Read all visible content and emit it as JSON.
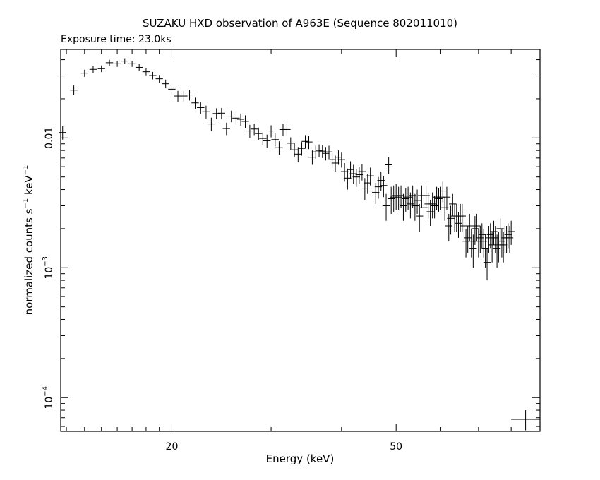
{
  "chart_data": {
    "type": "scatter",
    "title": "SUZAKU HXD observation of A963E (Sequence 802011010)",
    "subtitle": "Exposure time: 23.0ks",
    "xlabel": "Energy (keV)",
    "ylabel_main": "normalized counts s",
    "ylabel_sup1": "−1",
    "ylabel_mid": " keV",
    "ylabel_sup2": "−1",
    "xscale": "log",
    "yscale": "log",
    "xlim": [
      12.7,
      90
    ],
    "ylim": [
      5.5e-05,
      0.048
    ],
    "x_ticks": [
      {
        "value": 20,
        "label": "20"
      },
      {
        "value": 50,
        "label": "50"
      }
    ],
    "y_ticks": [
      {
        "value": 0.01,
        "base": "0.01",
        "exp": ""
      },
      {
        "value": 0.001,
        "base": "10",
        "exp": "−3"
      },
      {
        "value": 0.0001,
        "base": "10",
        "exp": "−4"
      }
    ],
    "points": [
      [
        12.8,
        0.011,
        0.0013
      ],
      [
        13.4,
        0.0233,
        0.002
      ],
      [
        14.0,
        0.0315,
        0.002
      ],
      [
        14.5,
        0.0337,
        0.002
      ],
      [
        15.0,
        0.0341,
        0.002
      ],
      [
        15.5,
        0.0379,
        0.002
      ],
      [
        16.0,
        0.0372,
        0.002
      ],
      [
        16.5,
        0.039,
        0.002
      ],
      [
        17.0,
        0.0372,
        0.002
      ],
      [
        17.5,
        0.0349,
        0.002
      ],
      [
        18.0,
        0.0323,
        0.002
      ],
      [
        18.5,
        0.0302,
        0.002
      ],
      [
        19.0,
        0.0285,
        0.002
      ],
      [
        19.5,
        0.0261,
        0.002
      ],
      [
        20.0,
        0.0237,
        0.002
      ],
      [
        20.5,
        0.021,
        0.002
      ],
      [
        21.0,
        0.021,
        0.002
      ],
      [
        21.5,
        0.0214,
        0.002
      ],
      [
        22.0,
        0.0186,
        0.0018
      ],
      [
        22.5,
        0.0171,
        0.0018
      ],
      [
        23.0,
        0.0159,
        0.0018
      ],
      [
        23.5,
        0.0128,
        0.0015
      ],
      [
        24.0,
        0.0154,
        0.0015
      ],
      [
        24.5,
        0.0155,
        0.0015
      ],
      [
        25.0,
        0.0118,
        0.0013
      ],
      [
        25.5,
        0.0147,
        0.0015
      ],
      [
        26.0,
        0.0142,
        0.0015
      ],
      [
        26.5,
        0.0139,
        0.0015
      ],
      [
        27.0,
        0.0134,
        0.0015
      ],
      [
        27.5,
        0.0113,
        0.0013
      ],
      [
        28.0,
        0.0117,
        0.0012
      ],
      [
        28.5,
        0.0108,
        0.0012
      ],
      [
        29.0,
        0.0099,
        0.0011
      ],
      [
        29.5,
        0.0095,
        0.0011
      ],
      [
        30.0,
        0.0113,
        0.0012
      ],
      [
        30.5,
        0.0097,
        0.0011
      ],
      [
        31.0,
        0.0084,
        0.001
      ],
      [
        31.5,
        0.0116,
        0.0012
      ],
      [
        32.0,
        0.0116,
        0.0012
      ],
      [
        32.5,
        0.0091,
        0.001
      ],
      [
        33.0,
        0.0081,
        0.001
      ],
      [
        33.5,
        0.0075,
        0.001
      ],
      [
        34.0,
        0.0083,
        0.001
      ],
      [
        34.5,
        0.0094,
        0.0011
      ],
      [
        35.0,
        0.0093,
        0.0011
      ],
      [
        35.5,
        0.0071,
        0.0009
      ],
      [
        36.0,
        0.0078,
        0.0009
      ],
      [
        36.5,
        0.008,
        0.0009
      ],
      [
        37.0,
        0.0079,
        0.0009
      ],
      [
        37.5,
        0.0076,
        0.0009
      ],
      [
        38.0,
        0.0078,
        0.0009
      ],
      [
        38.5,
        0.0068,
        0.0009
      ],
      [
        39.0,
        0.0064,
        0.0009
      ],
      [
        39.5,
        0.0071,
        0.0009
      ],
      [
        40.0,
        0.0068,
        0.0009
      ],
      [
        40.5,
        0.0055,
        0.0009
      ],
      [
        41.0,
        0.0049,
        0.0009
      ],
      [
        41.5,
        0.0057,
        0.0009
      ],
      [
        42.0,
        0.0053,
        0.0009
      ],
      [
        42.5,
        0.005,
        0.0008
      ],
      [
        43.0,
        0.0052,
        0.0008
      ],
      [
        43.5,
        0.0055,
        0.0008
      ],
      [
        44.0,
        0.0041,
        0.0008
      ],
      [
        44.5,
        0.0045,
        0.0008
      ],
      [
        45.0,
        0.0051,
        0.0008
      ],
      [
        45.5,
        0.0039,
        0.0007
      ],
      [
        46.0,
        0.0038,
        0.0007
      ],
      [
        46.5,
        0.0042,
        0.0008
      ],
      [
        47.0,
        0.0047,
        0.0008
      ],
      [
        47.5,
        0.0043,
        0.0008
      ],
      [
        48.0,
        0.003,
        0.0007
      ],
      [
        48.5,
        0.0062,
        0.0009
      ],
      [
        49.0,
        0.0034,
        0.0008
      ],
      [
        49.5,
        0.0035,
        0.0008
      ],
      [
        50.0,
        0.0036,
        0.0008
      ],
      [
        50.5,
        0.0035,
        0.0007
      ],
      [
        51.0,
        0.0036,
        0.0007
      ],
      [
        51.5,
        0.003,
        0.0007
      ],
      [
        52.0,
        0.0034,
        0.0007
      ],
      [
        52.5,
        0.0035,
        0.0007
      ],
      [
        53.0,
        0.0031,
        0.0007
      ],
      [
        53.5,
        0.0036,
        0.0007
      ],
      [
        54.0,
        0.003,
        0.0007
      ],
      [
        54.5,
        0.0033,
        0.0007
      ],
      [
        55.0,
        0.0025,
        0.0006
      ],
      [
        55.5,
        0.0036,
        0.0007
      ],
      [
        56.0,
        0.0029,
        0.0006
      ],
      [
        56.5,
        0.0036,
        0.0007
      ],
      [
        57.0,
        0.0031,
        0.0007
      ],
      [
        57.5,
        0.0027,
        0.0006
      ],
      [
        58.0,
        0.0031,
        0.0007
      ],
      [
        58.5,
        0.003,
        0.0006
      ],
      [
        59.0,
        0.0035,
        0.0007
      ],
      [
        59.5,
        0.0034,
        0.0007
      ],
      [
        60.0,
        0.0035,
        0.0007
      ],
      [
        60.5,
        0.0039,
        0.0007
      ],
      [
        61.0,
        0.0029,
        0.0006
      ],
      [
        61.5,
        0.0035,
        0.0007
      ],
      [
        62.0,
        0.0021,
        0.0005
      ],
      [
        62.5,
        0.0024,
        0.0006
      ],
      [
        63.0,
        0.0031,
        0.0006
      ],
      [
        63.5,
        0.0025,
        0.0006
      ],
      [
        64.0,
        0.0025,
        0.0006
      ],
      [
        64.5,
        0.0022,
        0.0005
      ],
      [
        65.0,
        0.0025,
        0.0006
      ],
      [
        65.5,
        0.0025,
        0.0006
      ],
      [
        66.0,
        0.0021,
        0.0005
      ],
      [
        66.5,
        0.0016,
        0.0004
      ],
      [
        67.0,
        0.0017,
        0.0004
      ],
      [
        67.5,
        0.0021,
        0.0005
      ],
      [
        68.0,
        0.0016,
        0.0004
      ],
      [
        68.5,
        0.0014,
        0.0004
      ],
      [
        69.0,
        0.002,
        0.0005
      ],
      [
        69.5,
        0.0021,
        0.0005
      ],
      [
        70.0,
        0.0016,
        0.0004
      ],
      [
        70.5,
        0.0017,
        0.0004
      ],
      [
        71.0,
        0.0018,
        0.0004
      ],
      [
        71.5,
        0.0016,
        0.0004
      ],
      [
        72.0,
        0.0014,
        0.0004
      ],
      [
        72.5,
        0.0011,
        0.0003
      ],
      [
        73.0,
        0.0017,
        0.0004
      ],
      [
        73.5,
        0.0018,
        0.0004
      ],
      [
        74.0,
        0.0015,
        0.0004
      ],
      [
        74.5,
        0.0019,
        0.0004
      ],
      [
        75.0,
        0.0017,
        0.0004
      ],
      [
        75.5,
        0.0014,
        0.0004
      ],
      [
        76.0,
        0.0015,
        0.0004
      ],
      [
        76.5,
        0.002,
        0.0004
      ],
      [
        77.0,
        0.0016,
        0.0004
      ],
      [
        77.5,
        0.0015,
        0.0004
      ],
      [
        78.0,
        0.0017,
        0.0004
      ],
      [
        78.5,
        0.0017,
        0.0004
      ],
      [
        79.0,
        0.0018,
        0.0004
      ],
      [
        79.5,
        0.0017,
        0.0004
      ],
      [
        80.0,
        0.0019,
        0.0004
      ]
    ],
    "legend_marker": {
      "x_range": [
        80,
        90
      ],
      "y": 6.8e-05,
      "y_err": 1.2e-05
    },
    "grid": false,
    "colors": {
      "ink": "#000000",
      "background": "#ffffff"
    }
  }
}
